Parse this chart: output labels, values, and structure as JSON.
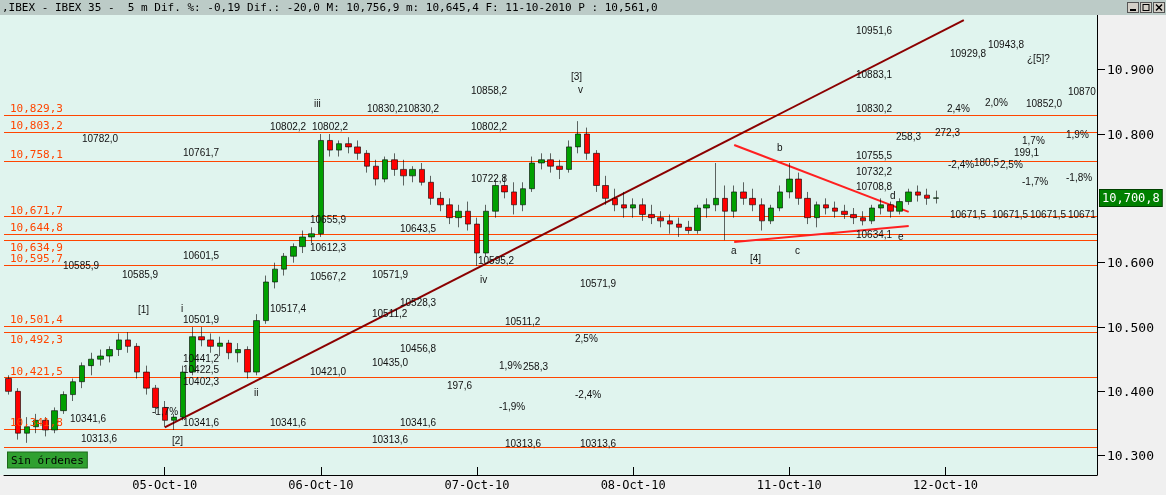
{
  "chart_data": {
    "type": "candlestick",
    "title": ",IBEX - IBEX 35 -  5 m Dif. %: -0,19 Dif.: -20,0 M: 10,756,9 m: 10,645,4 F: 11-10-2010 P : 10,561,0",
    "categories": [
      null,
      null,
      null,
      null,
      null,
      null,
      null,
      null,
      null,
      null,
      null,
      null,
      null,
      null,
      null,
      null,
      null,
      "05-Oct-10",
      null,
      null,
      null,
      null,
      null,
      null,
      null,
      null,
      null,
      null,
      null,
      null,
      null,
      null,
      null,
      null,
      "06-Oct-10",
      null,
      null,
      null,
      null,
      null,
      null,
      null,
      null,
      null,
      null,
      null,
      null,
      null,
      null,
      null,
      null,
      "07-Oct-10",
      null,
      null,
      null,
      null,
      null,
      null,
      null,
      null,
      null,
      null,
      null,
      null,
      null,
      null,
      null,
      null,
      "08-Oct-10",
      null,
      null,
      null,
      null,
      null,
      null,
      null,
      null,
      null,
      null,
      null,
      null,
      null,
      null,
      null,
      null,
      "11-Oct-10",
      null,
      null,
      null,
      null,
      null,
      null,
      null,
      null,
      null,
      null,
      null,
      null,
      null,
      null,
      null,
      null,
      "12-Oct-10",
      null,
      null,
      null,
      null,
      null,
      null,
      null,
      null,
      null,
      null,
      null,
      null,
      null,
      null,
      null,
      null
    ],
    "ohlc": [
      [
        10420,
        10425,
        10395,
        10400
      ],
      [
        10400,
        10405,
        10325,
        10335
      ],
      [
        10335,
        10360,
        10320,
        10345
      ],
      [
        10345,
        10365,
        10335,
        10355
      ],
      [
        10355,
        10360,
        10330,
        10340
      ],
      [
        10340,
        10375,
        10335,
        10370
      ],
      [
        10370,
        10400,
        10365,
        10395
      ],
      [
        10395,
        10420,
        10385,
        10415
      ],
      [
        10415,
        10445,
        10405,
        10440
      ],
      [
        10440,
        10460,
        10425,
        10450
      ],
      [
        10450,
        10465,
        10440,
        10455
      ],
      [
        10455,
        10470,
        10445,
        10465
      ],
      [
        10465,
        10490,
        10455,
        10480
      ],
      [
        10480,
        10492,
        10460,
        10470
      ],
      [
        10470,
        10475,
        10420,
        10430
      ],
      [
        10430,
        10440,
        10395,
        10405
      ],
      [
        10405,
        10410,
        10365,
        10375
      ],
      [
        10375,
        10385,
        10345,
        10355
      ],
      [
        10355,
        10365,
        10340,
        10360
      ],
      [
        10360,
        10440,
        10355,
        10430
      ],
      [
        10430,
        10500,
        10425,
        10485
      ],
      [
        10485,
        10500,
        10470,
        10480
      ],
      [
        10480,
        10490,
        10460,
        10470
      ],
      [
        10470,
        10485,
        10455,
        10475
      ],
      [
        10475,
        10480,
        10450,
        10460
      ],
      [
        10460,
        10475,
        10445,
        10465
      ],
      [
        10465,
        10470,
        10420,
        10430
      ],
      [
        10430,
        10520,
        10425,
        10510
      ],
      [
        10510,
        10580,
        10505,
        10570
      ],
      [
        10570,
        10600,
        10560,
        10590
      ],
      [
        10590,
        10615,
        10580,
        10610
      ],
      [
        10610,
        10630,
        10600,
        10625
      ],
      [
        10625,
        10650,
        10615,
        10640
      ],
      [
        10640,
        10655,
        10630,
        10645
      ],
      [
        10645,
        10800,
        10640,
        10790
      ],
      [
        10790,
        10800,
        10765,
        10775
      ],
      [
        10775,
        10790,
        10765,
        10785
      ],
      [
        10785,
        10795,
        10770,
        10780
      ],
      [
        10780,
        10790,
        10760,
        10770
      ],
      [
        10770,
        10775,
        10740,
        10750
      ],
      [
        10750,
        10760,
        10720,
        10730
      ],
      [
        10730,
        10765,
        10725,
        10760
      ],
      [
        10760,
        10770,
        10735,
        10745
      ],
      [
        10745,
        10760,
        10720,
        10735
      ],
      [
        10735,
        10750,
        10725,
        10745
      ],
      [
        10745,
        10755,
        10720,
        10725
      ],
      [
        10725,
        10735,
        10690,
        10700
      ],
      [
        10700,
        10710,
        10680,
        10690
      ],
      [
        10690,
        10700,
        10660,
        10670
      ],
      [
        10670,
        10690,
        10655,
        10680
      ],
      [
        10680,
        10695,
        10650,
        10660
      ],
      [
        10660,
        10670,
        10595,
        10615
      ],
      [
        10615,
        10690,
        10610,
        10680
      ],
      [
        10680,
        10730,
        10670,
        10720
      ],
      [
        10720,
        10735,
        10700,
        10710
      ],
      [
        10710,
        10725,
        10675,
        10690
      ],
      [
        10690,
        10725,
        10680,
        10715
      ],
      [
        10715,
        10765,
        10710,
        10755
      ],
      [
        10755,
        10770,
        10745,
        10760
      ],
      [
        10760,
        10770,
        10740,
        10750
      ],
      [
        10750,
        10760,
        10730,
        10745
      ],
      [
        10745,
        10790,
        10740,
        10780
      ],
      [
        10780,
        10820,
        10770,
        10800
      ],
      [
        10800,
        10810,
        10760,
        10770
      ],
      [
        10770,
        10775,
        10710,
        10720
      ],
      [
        10720,
        10735,
        10690,
        10700
      ],
      [
        10700,
        10715,
        10680,
        10690
      ],
      [
        10690,
        10710,
        10670,
        10685
      ],
      [
        10685,
        10700,
        10670,
        10690
      ],
      [
        10690,
        10700,
        10665,
        10675
      ],
      [
        10675,
        10690,
        10660,
        10670
      ],
      [
        10670,
        10680,
        10655,
        10665
      ],
      [
        10665,
        10675,
        10645,
        10660
      ],
      [
        10660,
        10670,
        10640,
        10655
      ],
      [
        10655,
        10665,
        10645,
        10650
      ],
      [
        10650,
        10690,
        10645,
        10685
      ],
      [
        10685,
        10700,
        10670,
        10690
      ],
      [
        10690,
        10755,
        10680,
        10700
      ],
      [
        10700,
        10720,
        10635,
        10680
      ],
      [
        10680,
        10720,
        10670,
        10710
      ],
      [
        10710,
        10725,
        10690,
        10700
      ],
      [
        10700,
        10715,
        10680,
        10690
      ],
      [
        10690,
        10700,
        10650,
        10665
      ],
      [
        10665,
        10690,
        10660,
        10685
      ],
      [
        10685,
        10720,
        10680,
        10710
      ],
      [
        10710,
        10755,
        10700,
        10730
      ],
      [
        10730,
        10740,
        10690,
        10700
      ],
      [
        10700,
        10710,
        10660,
        10670
      ],
      [
        10670,
        10695,
        10655,
        10690
      ],
      [
        10690,
        10700,
        10675,
        10685
      ],
      [
        10685,
        10695,
        10670,
        10680
      ],
      [
        10680,
        10690,
        10668,
        10675
      ],
      [
        10675,
        10685,
        10660,
        10670
      ],
      [
        10670,
        10680,
        10658,
        10665
      ],
      [
        10665,
        10690,
        10660,
        10685
      ],
      [
        10685,
        10700,
        10675,
        10690
      ],
      [
        10690,
        10695,
        10670,
        10680
      ],
      [
        10680,
        10700,
        10675,
        10695
      ],
      [
        10695,
        10715,
        10690,
        10710
      ],
      [
        10710,
        10720,
        10695,
        10705
      ],
      [
        10705,
        10715,
        10690,
        10700
      ],
      [
        10700,
        10712,
        10692,
        10700.8
      ],
      null,
      null,
      null,
      null,
      null,
      null,
      null,
      null,
      null,
      null,
      null,
      null,
      null,
      null,
      null,
      null,
      null
    ],
    "series": [
      {
        "type": "line",
        "color": "#8b0000",
        "values": [
          null,
          null,
          null,
          null,
          null,
          null,
          null,
          null,
          null,
          null,
          null,
          null,
          null,
          null,
          null,
          null,
          null,
          10344,
          null,
          null,
          null,
          null,
          null,
          null,
          null,
          null,
          null,
          null,
          null,
          null,
          null,
          null,
          null,
          null,
          null,
          null,
          null,
          null,
          null,
          null,
          null,
          null,
          null,
          null,
          null,
          null,
          null,
          null,
          null,
          null,
          null,
          null,
          null,
          null,
          null,
          null,
          null,
          null,
          null,
          null,
          null,
          null,
          null,
          null,
          null,
          null,
          null,
          null,
          null,
          null,
          null,
          null,
          null,
          null,
          null,
          null,
          null,
          null,
          null,
          null,
          null,
          null,
          null,
          null,
          null,
          null,
          null,
          null,
          null,
          null,
          null,
          null,
          null,
          null,
          null,
          null,
          null,
          null,
          null,
          null,
          null,
          null,
          null,
          null,
          10977,
          null,
          null,
          null,
          null,
          null,
          null,
          null,
          null,
          null,
          null,
          null,
          null,
          null,
          null
        ]
      },
      {
        "type": "line",
        "color": "#ff2020",
        "values": [
          null,
          null,
          null,
          null,
          null,
          null,
          null,
          null,
          null,
          null,
          null,
          null,
          null,
          null,
          null,
          null,
          null,
          null,
          null,
          null,
          null,
          null,
          null,
          null,
          null,
          null,
          null,
          null,
          null,
          null,
          null,
          null,
          null,
          null,
          null,
          null,
          null,
          null,
          null,
          null,
          null,
          null,
          null,
          null,
          null,
          null,
          null,
          null,
          null,
          null,
          null,
          null,
          null,
          null,
          null,
          null,
          null,
          null,
          null,
          null,
          null,
          null,
          null,
          null,
          null,
          null,
          null,
          null,
          null,
          null,
          null,
          null,
          null,
          null,
          null,
          null,
          null,
          null,
          null,
          10783,
          null,
          null,
          null,
          null,
          null,
          null,
          null,
          null,
          null,
          null,
          null,
          null,
          null,
          null,
          null,
          null,
          null,
          null,
          10679,
          null,
          null,
          null,
          null,
          null,
          null,
          null,
          null,
          null,
          null,
          null,
          null,
          null,
          null,
          null,
          null,
          null,
          null,
          null,
          null
        ]
      },
      {
        "type": "line",
        "color": "#ff2020",
        "values": [
          null,
          null,
          null,
          null,
          null,
          null,
          null,
          null,
          null,
          null,
          null,
          null,
          null,
          null,
          null,
          null,
          null,
          null,
          null,
          null,
          null,
          null,
          null,
          null,
          null,
          null,
          null,
          null,
          null,
          null,
          null,
          null,
          null,
          null,
          null,
          null,
          null,
          null,
          null,
          null,
          null,
          null,
          null,
          null,
          null,
          null,
          null,
          null,
          null,
          null,
          null,
          null,
          null,
          null,
          null,
          null,
          null,
          null,
          null,
          null,
          null,
          null,
          null,
          null,
          null,
          null,
          null,
          null,
          null,
          null,
          null,
          null,
          null,
          null,
          null,
          null,
          null,
          null,
          null,
          10632,
          null,
          null,
          null,
          null,
          null,
          null,
          null,
          null,
          null,
          null,
          null,
          null,
          null,
          null,
          null,
          null,
          null,
          null,
          10657,
          null,
          null,
          null,
          null,
          null,
          null,
          null,
          null,
          null,
          null,
          null,
          null,
          null,
          null,
          null,
          null,
          null,
          null,
          null,
          null
        ]
      }
    ],
    "ylim": [
      10270,
      10985
    ],
    "yticks": [
      {
        "value": 10300,
        "label": "10.300"
      },
      {
        "value": 10400,
        "label": "10.400"
      },
      {
        "value": 10500,
        "label": "10.500"
      },
      {
        "value": 10600,
        "label": "10.600"
      },
      {
        "value": 10800,
        "label": "10.800"
      },
      {
        "value": 10900,
        "label": "10.900"
      }
    ],
    "ref_lines": [
      {
        "axis": "y",
        "value": 10829.3,
        "label": "10,829,3",
        "color": "#ff4500"
      },
      {
        "axis": "y",
        "value": 10803.2,
        "label": "10,803,2",
        "color": "#ff4500"
      },
      {
        "axis": "y",
        "value": 10758.1,
        "label": "10,758,1",
        "color": "#ff4500"
      },
      {
        "axis": "y",
        "value": 10671.7,
        "label": "10,671,7",
        "color": "#ff4500"
      },
      {
        "axis": "y",
        "value": 10644.8,
        "label": "10,644,8",
        "color": "#ff4500"
      },
      {
        "axis": "y",
        "value": 10634.9,
        "label": "10,634,9",
        "color": "#ff4500"
      },
      {
        "axis": "y",
        "value": 10595.7,
        "label": "10,595,7",
        "color": "#ff4500"
      },
      {
        "axis": "y",
        "value": 10501.4,
        "label": "10,501,4",
        "color": "#ff4500"
      },
      {
        "axis": "y",
        "value": 10492.3,
        "label": "10,492,3",
        "color": "#ff4500"
      },
      {
        "axis": "y",
        "value": 10421.5,
        "label": "10,421,5",
        "color": "#ff4500"
      },
      {
        "axis": "y",
        "value": 10341.8,
        "label": "10,341,8",
        "color": "#ff4500"
      },
      {
        "axis": "y",
        "value": 10313.6,
        "label": null,
        "color": "#ff4500"
      }
    ],
    "annotations": [
      "[1]",
      "[2]",
      "[3]",
      "[4]",
      "¿[5]?",
      "i",
      "ii",
      "iii",
      "iv",
      "v",
      "a",
      "b",
      "c",
      "d",
      "e",
      "10782,0",
      "10761,7",
      "10601,5",
      "10585,9",
      "10585,9",
      "10501,9",
      "10441,2",
      "10422,5",
      "10402,3",
      "-1,7%",
      "10341,6",
      "10341,6",
      "10341,6",
      "10313,6",
      "10802,2",
      "10802,2",
      "10655,9",
      "10612,3",
      "10567,2",
      "10517,4",
      "10421,0",
      "10830,2",
      "10830,2",
      "10643,5",
      "10571,9",
      "10528,3",
      "10511,2",
      "10456,8",
      "10435,0",
      "10341,6",
      "10313,6",
      "10858,2",
      "10802,2",
      "10722,8",
      "10595,2",
      "10511,2",
      "10313,6",
      "10571,9",
      "10313,6",
      "2,5%",
      "1,9%",
      "258,3",
      "197,6",
      "-1,9%",
      "-2,4%",
      "10951,6",
      "10883,1",
      "10830,2",
      "10755,5",
      "10732,2",
      "10708,8",
      "10634,1",
      "10929,8",
      "10943,8",
      "2,0%",
      "10852,0",
      "10870",
      "2,4%",
      "272,3",
      "258,3",
      "1,9%",
      "1,7%",
      "199,1",
      "180,5",
      "2,5%",
      "-2,4%",
      "-1,7%",
      "-1,8%",
      "10671,5",
      "10671,5",
      "10671,5",
      "10671",
      "10,700,8",
      "Sin órdenes"
    ]
  }
}
